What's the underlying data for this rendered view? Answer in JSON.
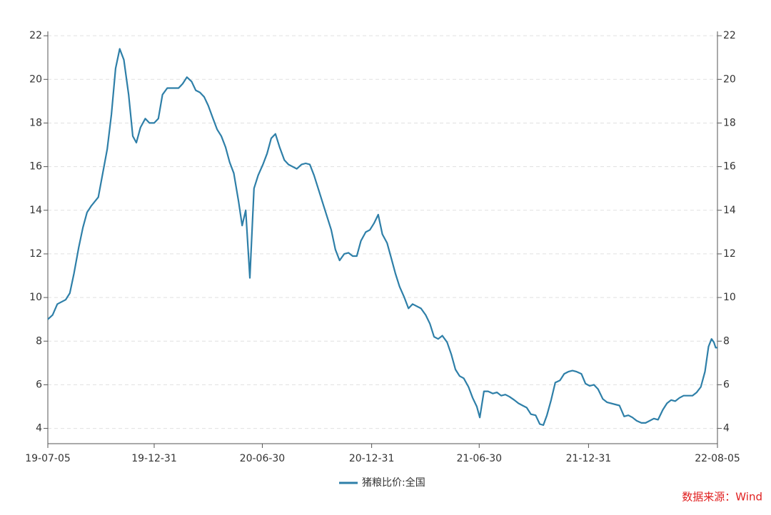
{
  "chart_data": {
    "type": "line",
    "x": [
      "2019-07-05",
      "2019-07-13",
      "2019-07-21",
      "2019-08-04",
      "2019-08-11",
      "2019-08-18",
      "2019-08-26",
      "2019-09-02",
      "2019-09-09",
      "2019-09-16",
      "2019-09-28",
      "2019-10-13",
      "2019-10-20",
      "2019-10-27",
      "2019-11-03",
      "2019-11-10",
      "2019-11-18",
      "2019-11-25",
      "2019-12-01",
      "2019-12-08",
      "2019-12-16",
      "2019-12-23",
      "2019-12-31",
      "2020-01-07",
      "2020-01-14",
      "2020-01-22",
      "2020-02-10",
      "2020-02-17",
      "2020-02-24",
      "2020-03-03",
      "2020-03-10",
      "2020-03-17",
      "2020-03-24",
      "2020-03-31",
      "2020-04-08",
      "2020-04-15",
      "2020-04-22",
      "2020-04-29",
      "2020-05-06",
      "2020-05-13",
      "2020-05-21",
      "2020-05-27",
      "2020-06-02",
      "2020-06-09",
      "2020-06-16",
      "2020-06-23",
      "2020-07-01",
      "2020-07-08",
      "2020-07-15",
      "2020-07-22",
      "2020-07-29",
      "2020-08-06",
      "2020-08-13",
      "2020-08-27",
      "2020-09-04",
      "2020-09-11",
      "2020-09-18",
      "2020-09-25",
      "2020-10-02",
      "2020-10-10",
      "2020-10-17",
      "2020-10-24",
      "2020-10-31",
      "2020-11-07",
      "2020-11-15",
      "2020-11-22",
      "2020-11-29",
      "2020-12-06",
      "2020-12-13",
      "2020-12-21",
      "2020-12-28",
      "2021-01-04",
      "2021-01-11",
      "2021-01-18",
      "2021-01-26",
      "2021-02-02",
      "2021-02-09",
      "2021-02-16",
      "2021-02-24",
      "2021-03-03",
      "2021-03-10",
      "2021-03-24",
      "2021-04-01",
      "2021-04-08",
      "2021-04-15",
      "2021-04-22",
      "2021-04-29",
      "2021-05-07",
      "2021-05-14",
      "2021-05-21",
      "2021-05-28",
      "2021-06-04",
      "2021-06-12",
      "2021-06-19",
      "2021-06-26",
      "2021-07-01",
      "2021-07-08",
      "2021-07-15",
      "2021-07-23",
      "2021-07-30",
      "2021-08-06",
      "2021-08-13",
      "2021-08-20",
      "2021-08-28",
      "2021-09-04",
      "2021-09-11",
      "2021-09-18",
      "2021-09-25",
      "2021-10-03",
      "2021-10-10",
      "2021-10-16",
      "2021-10-22",
      "2021-10-29",
      "2021-11-05",
      "2021-11-13",
      "2021-11-20",
      "2021-11-27",
      "2021-12-04",
      "2021-12-11",
      "2021-12-19",
      "2021-12-26",
      "2022-01-02",
      "2022-01-09",
      "2022-01-16",
      "2022-01-24",
      "2022-01-31",
      "2022-02-14",
      "2022-02-21",
      "2022-03-01",
      "2022-03-08",
      "2022-03-15",
      "2022-03-22",
      "2022-03-30",
      "2022-04-06",
      "2022-04-13",
      "2022-04-20",
      "2022-04-27",
      "2022-05-05",
      "2022-05-12",
      "2022-05-19",
      "2022-05-26",
      "2022-06-02",
      "2022-06-09",
      "2022-06-24",
      "2022-07-01",
      "2022-07-08",
      "2022-07-15",
      "2022-07-21",
      "2022-07-26",
      "2022-07-30",
      "2022-08-02",
      "2022-08-05"
    ],
    "series": [
      {
        "name": "猪粮比价:全国",
        "color": "#2e7fa8",
        "values": [
          9.0,
          9.2,
          9.7,
          9.9,
          10.2,
          11.1,
          12.3,
          13.2,
          13.9,
          14.2,
          14.6,
          16.8,
          18.4,
          20.5,
          21.4,
          20.9,
          19.3,
          17.4,
          17.1,
          17.8,
          18.2,
          18.0,
          18.0,
          18.2,
          19.3,
          19.6,
          19.6,
          19.8,
          20.1,
          19.9,
          19.5,
          19.4,
          19.2,
          18.8,
          18.2,
          17.7,
          17.4,
          16.9,
          16.2,
          15.7,
          14.4,
          13.3,
          14.0,
          10.9,
          15.0,
          15.6,
          16.1,
          16.6,
          17.3,
          17.5,
          16.9,
          16.3,
          16.1,
          15.9,
          16.1,
          16.15,
          16.1,
          15.6,
          15.0,
          14.3,
          13.7,
          13.1,
          12.2,
          11.7,
          12.0,
          12.05,
          11.9,
          11.9,
          12.6,
          13.0,
          13.1,
          13.4,
          13.8,
          12.9,
          12.5,
          11.8,
          11.1,
          10.5,
          10.0,
          9.5,
          9.7,
          9.5,
          9.2,
          8.8,
          8.2,
          8.1,
          8.25,
          7.95,
          7.4,
          6.7,
          6.4,
          6.3,
          5.9,
          5.4,
          5.0,
          4.5,
          5.7,
          5.7,
          5.6,
          5.65,
          5.5,
          5.55,
          5.45,
          5.3,
          5.15,
          5.05,
          4.95,
          4.65,
          4.6,
          4.2,
          4.15,
          4.6,
          5.3,
          6.1,
          6.2,
          6.5,
          6.6,
          6.65,
          6.6,
          6.5,
          6.05,
          5.95,
          6.0,
          5.8,
          5.35,
          5.2,
          5.1,
          5.05,
          4.55,
          4.6,
          4.5,
          4.35,
          4.25,
          4.25,
          4.35,
          4.45,
          4.4,
          4.85,
          5.15,
          5.3,
          5.25,
          5.4,
          5.5,
          5.5,
          5.65,
          5.9,
          6.6,
          7.75,
          8.1,
          7.95,
          7.7,
          7.7
        ]
      }
    ],
    "xlim": [
      "2019-07-05",
      "2022-08-05"
    ],
    "xticks": [
      {
        "value": "2019-07-05",
        "label": "19-07-05"
      },
      {
        "value": "2019-12-31",
        "label": "19-12-31"
      },
      {
        "value": "2020-06-30",
        "label": "20-06-30"
      },
      {
        "value": "2020-12-31",
        "label": "20-12-31"
      },
      {
        "value": "2021-06-30",
        "label": "21-06-30"
      },
      {
        "value": "2021-12-31",
        "label": "21-12-31"
      },
      {
        "value": "2022-08-05",
        "label": "22-08-05"
      }
    ],
    "ylim": [
      3.3,
      22.2
    ],
    "yticks": [
      4,
      6,
      8,
      10,
      12,
      14,
      16,
      18,
      20,
      22
    ],
    "y2lim": [
      3.3,
      22.2
    ],
    "y2ticks": [
      4,
      6,
      8,
      10,
      12,
      14,
      16,
      18,
      20,
      22
    ],
    "grid": true,
    "source": "数据来源：Wind"
  }
}
